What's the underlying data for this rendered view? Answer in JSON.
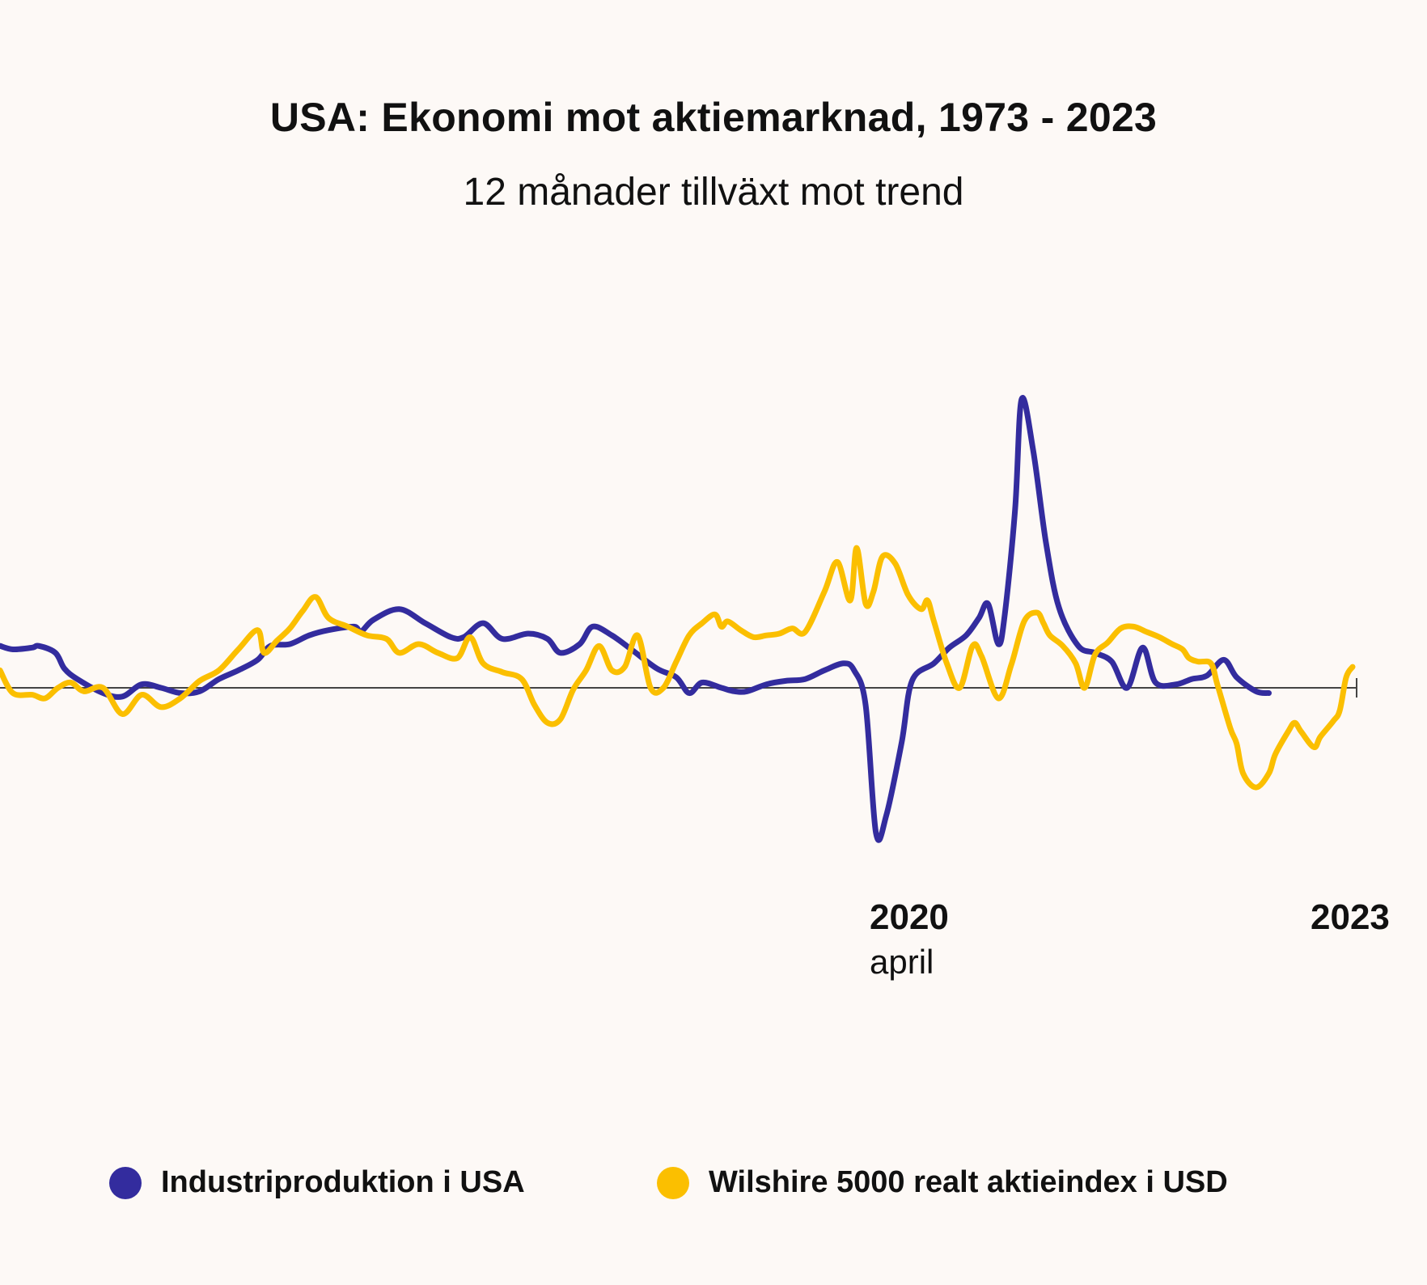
{
  "colors": {
    "background": "#fdf9f6",
    "industri": "#332c9e",
    "wilshire": "#fbbf00",
    "zero_line": "#444444"
  },
  "chart_data": {
    "type": "line",
    "title": "USA: Ekonomi mot aktiemarknad, 1973 - 2023",
    "subtitle": "12 månader tillväxt mot trend",
    "x_labels": [
      {
        "year": "2020",
        "sub": "april",
        "x": 2020.25
      },
      {
        "year": "2023",
        "sub": "",
        "x": 2023.0
      }
    ],
    "xlim": [
      2012.5,
      2023.05
    ],
    "ylim": [
      -1.0,
      2.05
    ],
    "zero_line": true,
    "grid": false,
    "legend_position": "bottom",
    "series": [
      {
        "name": "Industriproduktion i USA",
        "color": "#332c9e",
        "points": [
          [
            2012.5,
            0.24
          ],
          [
            2012.6,
            0.22
          ],
          [
            2012.75,
            0.23
          ],
          [
            2012.8,
            0.24
          ],
          [
            2012.93,
            0.2
          ],
          [
            2013.0,
            0.11
          ],
          [
            2013.1,
            0.05
          ],
          [
            2013.3,
            -0.03
          ],
          [
            2013.45,
            -0.05
          ],
          [
            2013.6,
            0.02
          ],
          [
            2013.75,
            0.0
          ],
          [
            2013.9,
            -0.03
          ],
          [
            2014.05,
            -0.02
          ],
          [
            2014.2,
            0.05
          ],
          [
            2014.35,
            0.1
          ],
          [
            2014.5,
            0.16
          ],
          [
            2014.6,
            0.24
          ],
          [
            2014.75,
            0.25
          ],
          [
            2014.9,
            0.3
          ],
          [
            2015.05,
            0.33
          ],
          [
            2015.25,
            0.35
          ],
          [
            2015.3,
            0.32
          ],
          [
            2015.4,
            0.39
          ],
          [
            2015.6,
            0.45
          ],
          [
            2015.8,
            0.37
          ],
          [
            2016.0,
            0.29
          ],
          [
            2016.1,
            0.29
          ],
          [
            2016.25,
            0.37
          ],
          [
            2016.4,
            0.28
          ],
          [
            2016.6,
            0.31
          ],
          [
            2016.75,
            0.28
          ],
          [
            2016.85,
            0.2
          ],
          [
            2017.0,
            0.25
          ],
          [
            2017.1,
            0.35
          ],
          [
            2017.25,
            0.3
          ],
          [
            2017.4,
            0.22
          ],
          [
            2017.6,
            0.11
          ],
          [
            2017.75,
            0.06
          ],
          [
            2017.85,
            -0.03
          ],
          [
            2017.95,
            0.03
          ],
          [
            2018.1,
            0.0
          ],
          [
            2018.2,
            -0.02
          ],
          [
            2018.3,
            -0.02
          ],
          [
            2018.45,
            0.02
          ],
          [
            2018.6,
            0.04
          ],
          [
            2018.75,
            0.05
          ],
          [
            2018.9,
            0.1
          ],
          [
            2019.05,
            0.14
          ],
          [
            2019.13,
            0.1
          ],
          [
            2019.22,
            -0.1
          ],
          [
            2019.3,
            -0.83
          ],
          [
            2019.38,
            -0.73
          ],
          [
            2019.5,
            -0.31
          ],
          [
            2019.58,
            0.04
          ],
          [
            2019.75,
            0.14
          ],
          [
            2019.87,
            0.23
          ],
          [
            2020.0,
            0.3
          ],
          [
            2020.1,
            0.4
          ],
          [
            2020.17,
            0.48
          ],
          [
            2020.25,
            0.25
          ],
          [
            2020.3,
            0.42
          ],
          [
            2020.38,
            1.02
          ],
          [
            2020.43,
            1.65
          ],
          [
            2020.52,
            1.36
          ],
          [
            2020.62,
            0.83
          ],
          [
            2020.72,
            0.46
          ],
          [
            2020.87,
            0.24
          ],
          [
            2021.0,
            0.2
          ],
          [
            2021.13,
            0.15
          ],
          [
            2021.25,
            0.0
          ],
          [
            2021.37,
            0.23
          ],
          [
            2021.47,
            0.03
          ],
          [
            2021.63,
            0.02
          ],
          [
            2021.75,
            0.05
          ],
          [
            2021.87,
            0.07
          ],
          [
            2022.0,
            0.16
          ],
          [
            2022.1,
            0.06
          ],
          [
            2022.25,
            -0.02
          ],
          [
            2022.35,
            -0.03
          ]
        ]
      },
      {
        "name": "Wilshire 5000 realt aktieindex i USD",
        "color": "#fbbf00",
        "points": [
          [
            2012.5,
            0.1
          ],
          [
            2012.6,
            -0.03
          ],
          [
            2012.75,
            -0.04
          ],
          [
            2012.85,
            -0.06
          ],
          [
            2012.95,
            0.0
          ],
          [
            2013.05,
            0.03
          ],
          [
            2013.15,
            -0.02
          ],
          [
            2013.3,
            0.0
          ],
          [
            2013.45,
            -0.15
          ],
          [
            2013.6,
            -0.04
          ],
          [
            2013.75,
            -0.11
          ],
          [
            2013.9,
            -0.06
          ],
          [
            2014.05,
            0.04
          ],
          [
            2014.2,
            0.1
          ],
          [
            2014.35,
            0.22
          ],
          [
            2014.5,
            0.33
          ],
          [
            2014.55,
            0.2
          ],
          [
            2014.65,
            0.27
          ],
          [
            2014.75,
            0.34
          ],
          [
            2014.85,
            0.44
          ],
          [
            2014.95,
            0.52
          ],
          [
            2015.05,
            0.4
          ],
          [
            2015.2,
            0.35
          ],
          [
            2015.35,
            0.3
          ],
          [
            2015.5,
            0.28
          ],
          [
            2015.6,
            0.2
          ],
          [
            2015.75,
            0.25
          ],
          [
            2015.9,
            0.2
          ],
          [
            2016.05,
            0.17
          ],
          [
            2016.15,
            0.29
          ],
          [
            2016.25,
            0.14
          ],
          [
            2016.4,
            0.09
          ],
          [
            2016.55,
            0.05
          ],
          [
            2016.65,
            -0.1
          ],
          [
            2016.75,
            -0.2
          ],
          [
            2016.85,
            -0.18
          ],
          [
            2016.95,
            -0.01
          ],
          [
            2017.05,
            0.1
          ],
          [
            2017.15,
            0.24
          ],
          [
            2017.25,
            0.1
          ],
          [
            2017.35,
            0.12
          ],
          [
            2017.45,
            0.3
          ],
          [
            2017.55,
            0.0
          ],
          [
            2017.65,
            0.0
          ],
          [
            2017.75,
            0.15
          ],
          [
            2017.85,
            0.3
          ],
          [
            2017.95,
            0.37
          ],
          [
            2018.05,
            0.42
          ],
          [
            2018.1,
            0.35
          ],
          [
            2018.15,
            0.38
          ],
          [
            2018.25,
            0.33
          ],
          [
            2018.35,
            0.29
          ],
          [
            2018.45,
            0.3
          ],
          [
            2018.55,
            0.31
          ],
          [
            2018.65,
            0.34
          ],
          [
            2018.75,
            0.32
          ],
          [
            2018.9,
            0.55
          ],
          [
            2019.0,
            0.72
          ],
          [
            2019.1,
            0.5
          ],
          [
            2019.15,
            0.8
          ],
          [
            2019.22,
            0.48
          ],
          [
            2019.28,
            0.55
          ],
          [
            2019.35,
            0.75
          ],
          [
            2019.45,
            0.71
          ],
          [
            2019.55,
            0.53
          ],
          [
            2019.65,
            0.45
          ],
          [
            2019.7,
            0.5
          ],
          [
            2019.75,
            0.38
          ],
          [
            2019.85,
            0.14
          ],
          [
            2019.95,
            0.0
          ],
          [
            2020.05,
            0.24
          ],
          [
            2020.12,
            0.18
          ],
          [
            2020.25,
            -0.06
          ],
          [
            2020.35,
            0.13
          ],
          [
            2020.45,
            0.38
          ],
          [
            2020.55,
            0.43
          ],
          [
            2020.6,
            0.37
          ],
          [
            2020.65,
            0.3
          ],
          [
            2020.75,
            0.24
          ],
          [
            2020.85,
            0.14
          ],
          [
            2020.92,
            0.0
          ],
          [
            2021.0,
            0.19
          ],
          [
            2021.1,
            0.26
          ],
          [
            2021.2,
            0.34
          ],
          [
            2021.3,
            0.35
          ],
          [
            2021.4,
            0.32
          ],
          [
            2021.5,
            0.29
          ],
          [
            2021.6,
            0.25
          ],
          [
            2021.68,
            0.22
          ],
          [
            2021.73,
            0.17
          ],
          [
            2021.8,
            0.15
          ],
          [
            2021.9,
            0.14
          ],
          [
            2021.95,
            0.02
          ],
          [
            2022.05,
            -0.23
          ],
          [
            2022.1,
            -0.32
          ],
          [
            2022.15,
            -0.49
          ],
          [
            2022.25,
            -0.57
          ],
          [
            2022.35,
            -0.49
          ],
          [
            2022.4,
            -0.38
          ],
          [
            2022.5,
            -0.25
          ],
          [
            2022.55,
            -0.2
          ],
          [
            2022.6,
            -0.25
          ],
          [
            2022.7,
            -0.34
          ],
          [
            2022.75,
            -0.28
          ],
          [
            2022.85,
            -0.19
          ],
          [
            2022.9,
            -0.13
          ],
          [
            2022.95,
            0.06
          ],
          [
            2023.0,
            0.12
          ]
        ]
      }
    ]
  }
}
